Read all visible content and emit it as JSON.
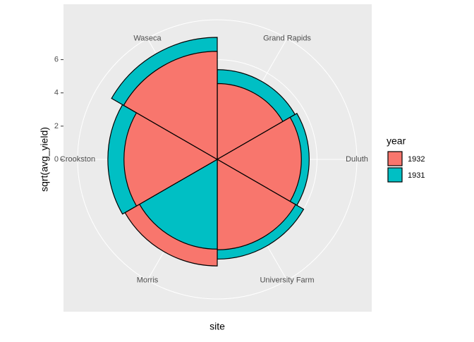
{
  "chart_data": {
    "type": "polar-bar",
    "x_label": "site",
    "y_label": "sqrt(avg_yield)",
    "categories": [
      "Grand Rapids",
      "Duluth",
      "University Farm",
      "Morris",
      "Crookston",
      "Waseca"
    ],
    "legend_title": "year",
    "series": [
      {
        "name": "1932",
        "color": "#F8766D",
        "values": [
          4.56,
          5.06,
          5.44,
          6.41,
          5.61,
          6.5
        ]
      },
      {
        "name": "1931",
        "color": "#00BFC4",
        "values": [
          5.4,
          5.53,
          6.0,
          5.4,
          6.58,
          7.34
        ]
      }
    ],
    "ylim": [
      0,
      8.4
    ],
    "yticks": [
      0,
      2,
      4,
      6
    ],
    "grid": true
  }
}
